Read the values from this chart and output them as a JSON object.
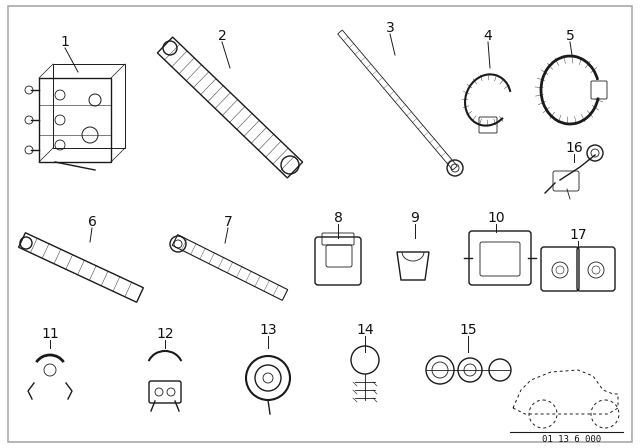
{
  "bg_color": "#ffffff",
  "border_color": "#cccccc",
  "line_color": "#1a1a1a",
  "label_color": "#111111",
  "footnote": "01 13 6 000",
  "fontsize_label": 10,
  "fontsize_note": 6.5,
  "fig_width": 6.4,
  "fig_height": 4.48,
  "dpi": 100
}
